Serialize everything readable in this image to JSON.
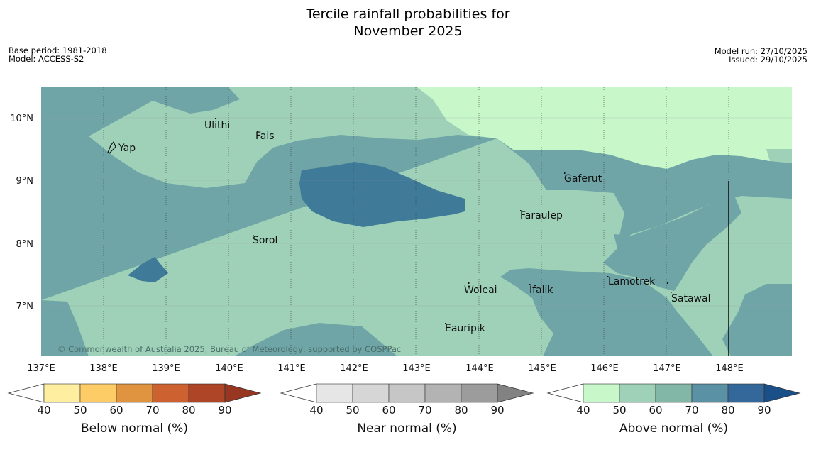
{
  "title_line1": "Tercile rainfall probabilities for",
  "title_line2": "November 2025",
  "meta_left": [
    "Base period: 1981-2018",
    "Model: ACCESS-S2"
  ],
  "meta_right": [
    "Model run: 27/10/2025",
    "Issued: 29/10/2025"
  ],
  "copyright": "© Commonwealth of Australia 2025, Bureau of Meteorology, supported by COSPPac",
  "lon_ticks": [
    "137°E",
    "138°E",
    "139°E",
    "140°E",
    "141°E",
    "142°E",
    "143°E",
    "144°E",
    "145°E",
    "146°E",
    "147°E",
    "148°E"
  ],
  "lat_ticks": [
    "10°N",
    "9°N",
    "8°N",
    "7°N"
  ],
  "places": [
    {
      "name": "Yap"
    },
    {
      "name": "Ulithi"
    },
    {
      "name": "Fais"
    },
    {
      "name": "Gaferut"
    },
    {
      "name": "Faraulep"
    },
    {
      "name": "Sorol"
    },
    {
      "name": "Lamotrek"
    },
    {
      "name": "Woleai"
    },
    {
      "name": "Ifalik"
    },
    {
      "name": "Satawal"
    },
    {
      "name": "Eauripik"
    }
  ],
  "colorbars": [
    {
      "label": "Below normal (%)",
      "ticks": [
        "40",
        "50",
        "60",
        "70",
        "80",
        "90"
      ],
      "colors": [
        "#fdeea0",
        "#fdcc66",
        "#e1943f",
        "#cd6130",
        "#ad4526",
        "#973722"
      ]
    },
    {
      "label": "Near normal (%)",
      "ticks": [
        "40",
        "50",
        "60",
        "70",
        "80",
        "90"
      ],
      "colors": [
        "#e6e6e6",
        "#d6d6d6",
        "#c6c6c6",
        "#b3b3b3",
        "#9c9c9c",
        "#828282"
      ]
    },
    {
      "label": "Above normal (%)",
      "ticks": [
        "40",
        "50",
        "60",
        "70",
        "80",
        "90"
      ],
      "colors": [
        "#c8f8c9",
        "#9ed1b8",
        "#82b7a8",
        "#5b91a4",
        "#34689a",
        "#1a4f87"
      ]
    }
  ],
  "legend_levels_pct": [
    40,
    50,
    60,
    70,
    80,
    90
  ],
  "map_zones_above_normal_pct": [
    "40-50",
    "50-60",
    "60-70",
    "70-80"
  ]
}
